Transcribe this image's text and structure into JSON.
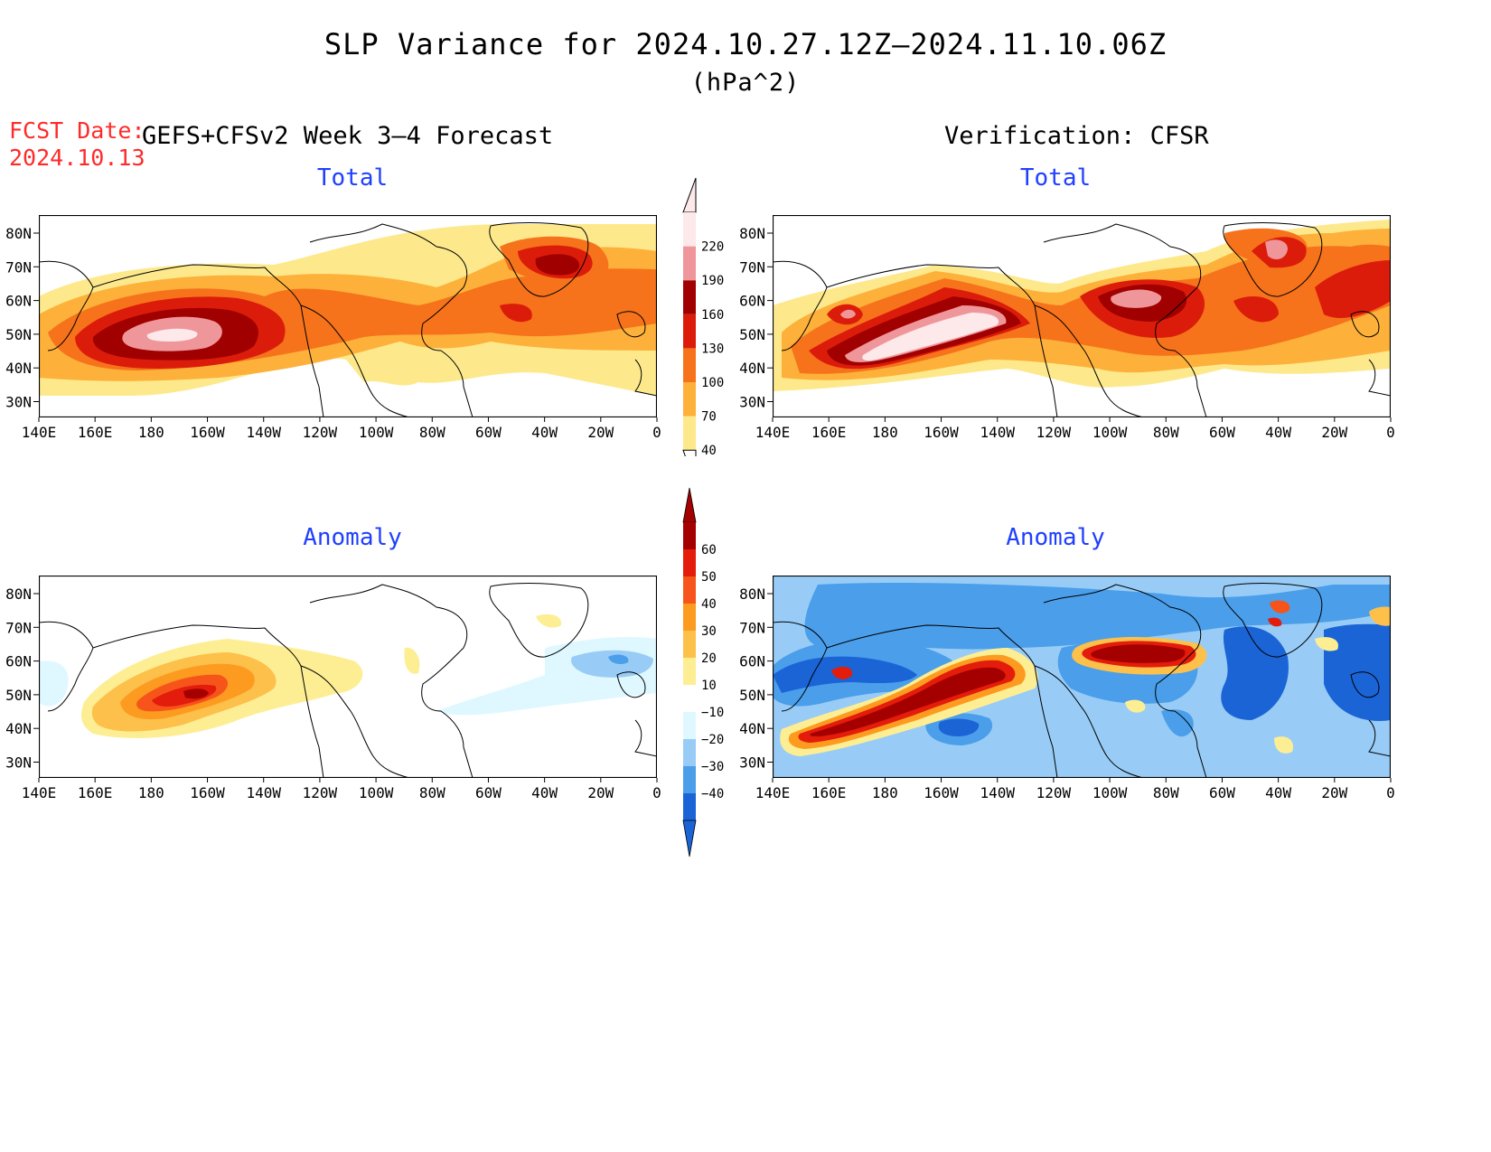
{
  "title": "SLP Variance for 2024.10.27.12Z–2024.11.10.06Z",
  "units": "(hPa^2)",
  "fcst_date_label": "FCST Date:",
  "fcst_date_value": "2024.10.13",
  "forecast_header": "GEFS+CFSv2 Week 3–4 Forecast",
  "verification_header": "Verification: CFSR",
  "panels": [
    {
      "title": "Total"
    },
    {
      "title": "Total"
    },
    {
      "title": "Anomaly"
    },
    {
      "title": "Anomaly"
    }
  ],
  "lat_labels": [
    "80N",
    "70N",
    "60N",
    "50N",
    "40N",
    "30N"
  ],
  "lon_labels": [
    "140E",
    "160E",
    "180",
    "160W",
    "140W",
    "120W",
    "100W",
    "80W",
    "60W",
    "40W",
    "20W",
    "0"
  ],
  "colorbar_total": {
    "levels": [
      "40",
      "70",
      "100",
      "130",
      "160",
      "190",
      "220"
    ],
    "colors": [
      "#fde98c",
      "#fdb13a",
      "#f6731b",
      "#dc1c0b",
      "#a10000",
      "#ef969b",
      "#fde8ea"
    ]
  },
  "colorbar_anomaly": {
    "levels": [
      "60",
      "50",
      "40",
      "30",
      "20",
      "10",
      "−10",
      "−20",
      "−30",
      "−40"
    ],
    "colors_top_down": [
      "#a50000",
      "#e31c0b",
      "#f6541a",
      "#fc9b1f",
      "#fdc04a",
      "#fdee94",
      "#ffffff",
      "#dff8ff",
      "#98ccf6",
      "#4a9eea",
      "#1a64d6"
    ]
  },
  "colors": {
    "title_blue": "#1f3fff",
    "fcst_red": "#ff2a2a"
  }
}
